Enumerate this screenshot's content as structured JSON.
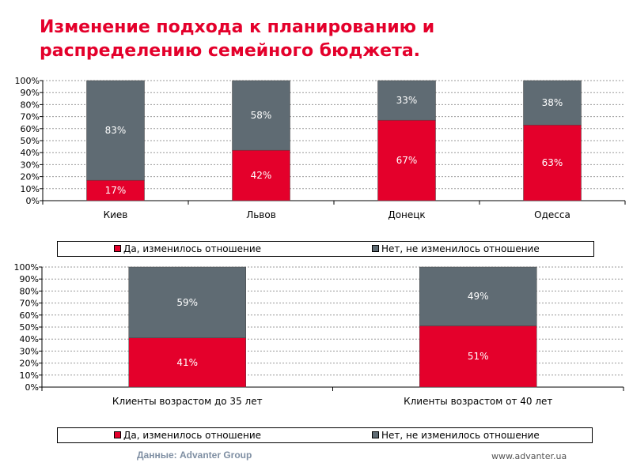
{
  "title": {
    "line1": "Изменение подхода к планированию и",
    "line2": "распределению семейного бюджета."
  },
  "colors": {
    "yes": "#e4002b",
    "no": "#5f6b73",
    "title": "#e4002b"
  },
  "chart_data": [
    {
      "type": "bar",
      "stacked": true,
      "categories": [
        "Киев",
        "Львов",
        "Донецк",
        "Одесса"
      ],
      "series": [
        {
          "name": "Да, изменилось отношение",
          "values": [
            17,
            42,
            67,
            63
          ],
          "labels": [
            "17%",
            "42%",
            "67%",
            "63%"
          ]
        },
        {
          "name": "Нет, не изменилось отношение",
          "values": [
            83,
            58,
            33,
            38
          ],
          "labels": [
            "83%",
            "58%",
            "33%",
            "38%"
          ]
        }
      ],
      "yticks": [
        "0%",
        "10%",
        "20%",
        "30%",
        "40%",
        "50%",
        "60%",
        "70%",
        "80%",
        "90%",
        "100%"
      ],
      "ylim": [
        0,
        100
      ],
      "grid": true,
      "legend": "bottom"
    },
    {
      "type": "bar",
      "stacked": true,
      "categories": [
        "Клиенты возрастом до 35 лет",
        "Клиенты возрастом от 40 лет"
      ],
      "series": [
        {
          "name": "Да, изменилось отношение",
          "values": [
            41,
            51
          ],
          "labels": [
            "41%",
            "51%"
          ]
        },
        {
          "name": "Нет, не изменилось отношение",
          "values": [
            59,
            49
          ],
          "labels": [
            "59%",
            "49%"
          ]
        }
      ],
      "yticks": [
        "0%",
        "10%",
        "20%",
        "30%",
        "40%",
        "50%",
        "60%",
        "70%",
        "80%",
        "90%",
        "100%"
      ],
      "ylim": [
        0,
        100
      ],
      "grid": true,
      "legend": "bottom"
    }
  ],
  "legend": {
    "yes_label": "Да, изменилось отношение",
    "no_label": "Нет, не изменилось отношение"
  },
  "footer": {
    "source": "Данные: Advanter Group",
    "url": "www.advanter.ua"
  }
}
